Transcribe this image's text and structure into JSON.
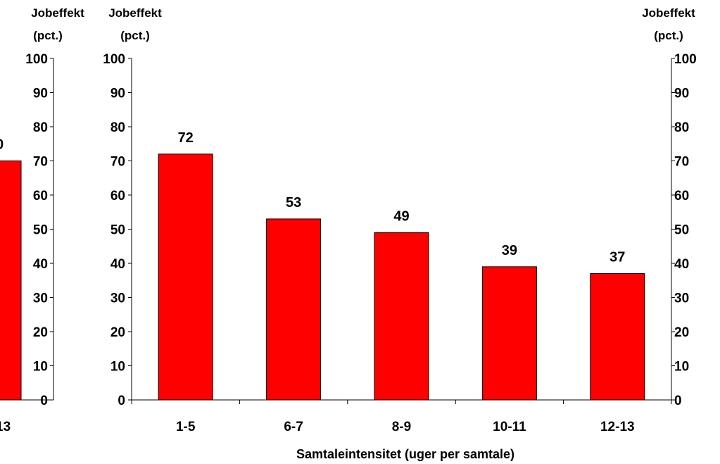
{
  "chart_data": {
    "type": "bar",
    "y_axis_title_line1": "Jobeffekt",
    "y_axis_title_line2": "(pct.)",
    "xlabel": "Samtaleintensitet (uger per samtale)",
    "ylim": [
      0,
      100
    ],
    "yticks": [
      "0",
      "10",
      "20",
      "30",
      "40",
      "50",
      "60",
      "70",
      "80",
      "90",
      "100"
    ],
    "categories": [
      "1-5",
      "6-7",
      "8-9",
      "10-11",
      "12-13"
    ],
    "values": [
      72,
      53,
      49,
      39,
      37
    ],
    "value_labels": [
      "72",
      "53",
      "49",
      "39",
      "37"
    ],
    "clipped_left_panel": {
      "category_fragment": "13",
      "value": 70,
      "value_label_fragment": "0"
    },
    "grid": false,
    "legend": "none",
    "colors": {
      "bar": "#ff0000",
      "bar_outline": "#000000",
      "axis": "#000000"
    }
  }
}
